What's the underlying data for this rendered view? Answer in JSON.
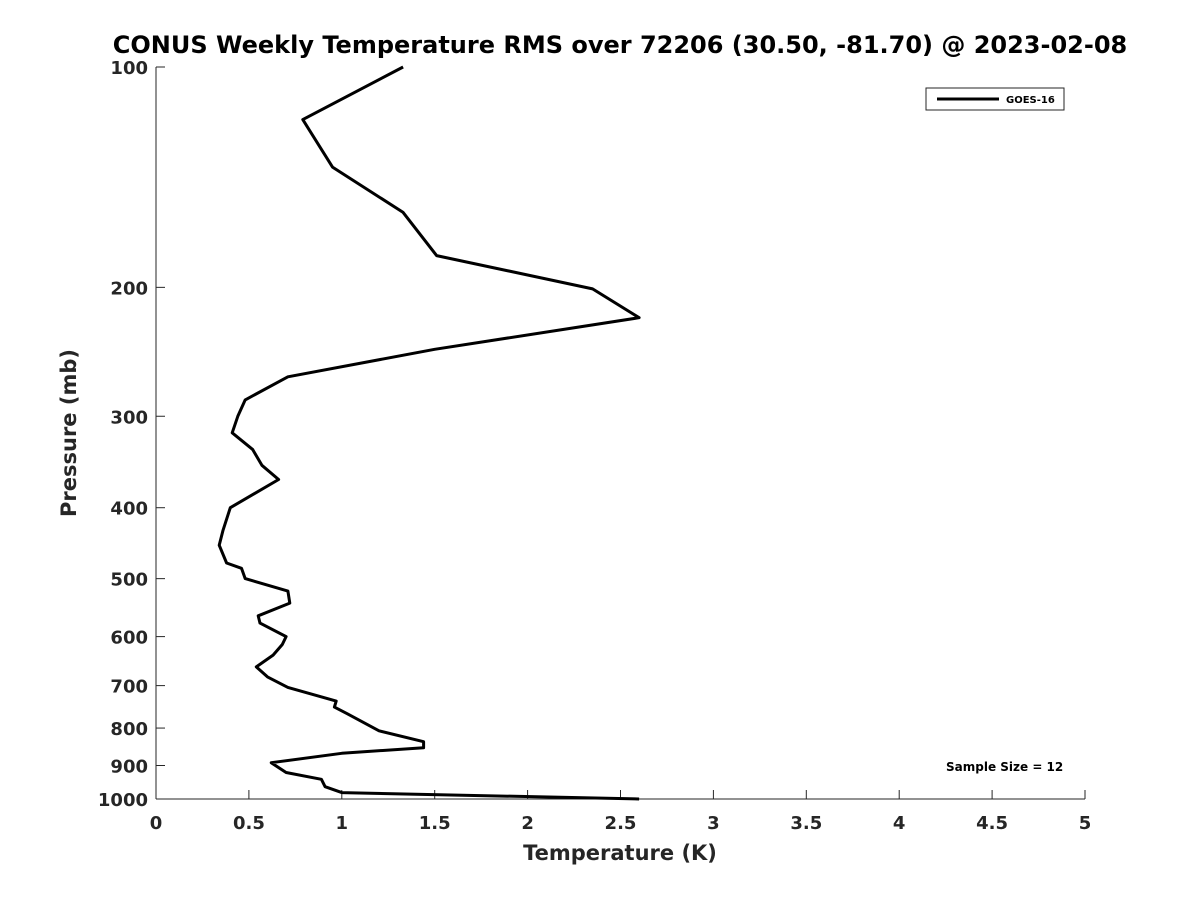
{
  "chart_data": {
    "type": "line",
    "title": "CONUS Weekly Temperature RMS over 72206 (30.50, -81.70) @ 2023-02-08",
    "xlabel": "Temperature (K)",
    "ylabel": "Pressure (mb)",
    "xlim": [
      0,
      5
    ],
    "ylim": [
      100,
      1000
    ],
    "y_scale": "log",
    "y_reversed": true,
    "x_ticks": [
      "0",
      "0.5",
      "1",
      "1.5",
      "2",
      "2.5",
      "3",
      "3.5",
      "4",
      "4.5",
      "5"
    ],
    "y_ticks": [
      "100",
      "200",
      "300",
      "400",
      "500",
      "600",
      "700",
      "800",
      "900",
      "1000"
    ],
    "grid": false,
    "legend_position": "top-right",
    "series": [
      {
        "name": "GOES-16",
        "color": "#000000",
        "x": [
          1.33,
          0.79,
          0.95,
          1.33,
          1.51,
          2.35,
          2.6,
          1.5,
          0.71,
          0.48,
          0.44,
          0.41,
          0.52,
          0.57,
          0.66,
          0.4,
          0.36,
          0.34,
          0.38,
          0.46,
          0.48,
          0.71,
          0.72,
          0.55,
          0.56,
          0.7,
          0.68,
          0.63,
          0.54,
          0.6,
          0.71,
          0.97,
          0.96,
          1.03,
          1.2,
          1.44,
          1.44,
          1.0,
          0.62,
          0.7,
          0.89,
          0.91,
          1.0,
          2.6
        ],
        "y": [
          100,
          118,
          137,
          158,
          181,
          201,
          220,
          243,
          265,
          285,
          300,
          316,
          333,
          350,
          366,
          400,
          430,
          450,
          476,
          484,
          500,
          520,
          540,
          562,
          575,
          600,
          615,
          636,
          660,
          681,
          704,
          735,
          749,
          765,
          807,
          835,
          851,
          866,
          892,
          920,
          940,
          962,
          980,
          1000
        ]
      }
    ],
    "annotation": "Sample Size = 12"
  }
}
